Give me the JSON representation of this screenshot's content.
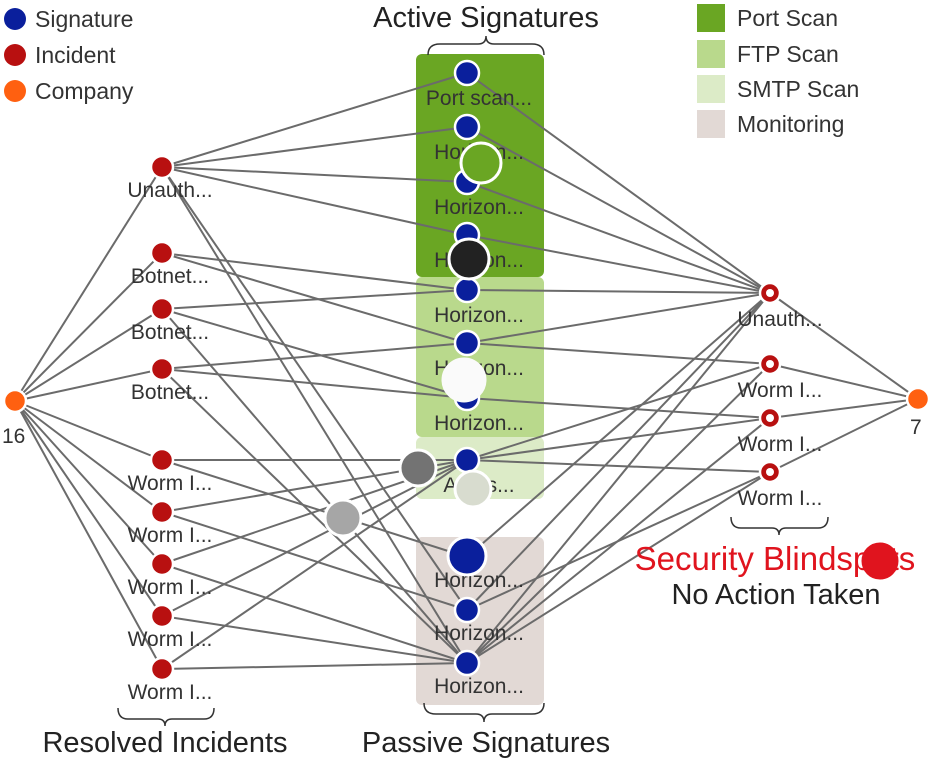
{
  "legend_nodes": [
    {
      "label": "Signature",
      "color": "#0a1f9c"
    },
    {
      "label": "Incident",
      "color": "#b81010"
    },
    {
      "label": "Company",
      "color": "#ff6010"
    }
  ],
  "legend_groups": [
    {
      "label": "Port Scan",
      "color": "#6aa623"
    },
    {
      "label": "FTP Scan",
      "color": "#b9d98c"
    },
    {
      "label": "SMTP Scan",
      "color": "#dcebc7"
    },
    {
      "label": "Monitoring",
      "color": "#e2d9d5"
    }
  ],
  "headings": {
    "active": "Active Signatures",
    "passive": "Passive Signatures",
    "resolved": "Resolved Incidents",
    "blindspots": "Security Blindspots",
    "no_action": "No Action Taken"
  },
  "companies": {
    "left": "16",
    "right": "7"
  },
  "resolved_incidents": [
    "Unauth...",
    "Botnet...",
    "Botnet...",
    "Botnet...",
    "Worm I...",
    "Worm I...",
    "Worm I...",
    "Worm I...",
    "Worm I..."
  ],
  "active_signatures": [
    "Port scan...",
    "Horizon...",
    "Horizon...",
    "Horizon...",
    "Horizon...",
    "Horizon...",
    "Horizon...",
    "Ag...s..."
  ],
  "passive_signatures": [
    "Horizon...",
    "Horizon...",
    "Horizon..."
  ],
  "blindspot_incidents": [
    "Unauth...",
    "Worm I...",
    "Worm I...",
    "Worm I..."
  ]
}
